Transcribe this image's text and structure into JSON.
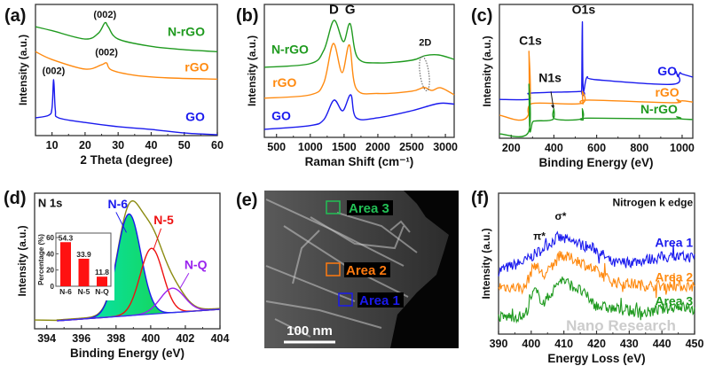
{
  "figure": {
    "watermark": "Nano Research"
  },
  "chart_data": [
    {
      "panel": "(a)",
      "type": "line",
      "xlabel": "2 Theta (degree)",
      "ylabel": "Intensity (a.u.)",
      "xlim": [
        5,
        60
      ],
      "ylim": [
        0,
        100
      ],
      "xticks": [
        10,
        20,
        30,
        40,
        50,
        60
      ],
      "grid": false,
      "series": [
        {
          "name": "N-rGO",
          "color": "#1f9a1f",
          "x": [
            5,
            10,
            20,
            24,
            26,
            27,
            30,
            40,
            50,
            60
          ],
          "y": [
            83,
            80,
            73.6,
            78,
            86,
            83,
            73.6,
            68,
            65.5,
            64
          ]
        },
        {
          "name": "rGO",
          "color": "#ff8a10",
          "x": [
            5,
            10,
            20,
            25,
            26.5,
            28,
            35,
            45,
            60
          ],
          "y": [
            64,
            58,
            50.7,
            54,
            55.4,
            50,
            46,
            44,
            43
          ]
        },
        {
          "name": "GO",
          "color": "#1a1aee",
          "x": [
            5,
            9,
            10,
            10.5,
            11,
            12,
            20,
            30,
            40,
            50,
            60
          ],
          "y": [
            13.5,
            15.5,
            21,
            42.6,
            19.6,
            13.5,
            10,
            6.8,
            4.7,
            2,
            0.7
          ]
        }
      ],
      "annotations": [
        {
          "text": "(002)"
        },
        {
          "text": "(002)"
        },
        {
          "text": "(002)"
        }
      ]
    },
    {
      "panel": "(b)",
      "type": "line",
      "xlabel": "Raman Shift (cm⁻¹)",
      "ylabel": "Intensity (a.u.)",
      "xlim": [
        320,
        3130
      ],
      "ylim": [
        0,
        100
      ],
      "xticks": [
        500,
        1000,
        1500,
        2000,
        2500,
        3000
      ],
      "grid": false,
      "series": [
        {
          "name": "N-rGO",
          "color": "#1f9a1f",
          "x": [
            320,
            1000,
            1200,
            1350,
            1490,
            1590,
            1700,
            2000,
            2500,
            2700,
            2900,
            3130
          ],
          "y": [
            52.7,
            55.5,
            65.5,
            88,
            72,
            85.5,
            60,
            56,
            58,
            61.5,
            62,
            58.7
          ]
        },
        {
          "name": "rGO",
          "color": "#ff8a10",
          "x": [
            320,
            1000,
            1200,
            1340,
            1470,
            1580,
            1680,
            2000,
            2500,
            2680,
            2800,
            2930,
            3130
          ],
          "y": [
            29.5,
            32,
            41,
            70.6,
            48.7,
            69.5,
            36.7,
            33,
            34.7,
            37.5,
            35.3,
            37.3,
            32
          ]
        },
        {
          "name": "GO",
          "color": "#1a1aee",
          "x": [
            320,
            1000,
            1200,
            1350,
            1480,
            1600,
            1680,
            2000,
            2500,
            2900,
            3130
          ],
          "y": [
            6,
            8.9,
            13.3,
            28,
            20,
            32,
            14.7,
            14.7,
            20,
            25.5,
            25
          ]
        }
      ],
      "annotations": [
        {
          "text": "D"
        },
        {
          "text": "G"
        },
        {
          "text": "2D"
        }
      ]
    },
    {
      "panel": "(c)",
      "type": "line",
      "xlabel": "Binding Energy (eV)",
      "ylabel": "Intensity (a.u.)",
      "xlim": [
        145,
        1050
      ],
      "ylim": [
        0,
        100
      ],
      "xticks": [
        200,
        400,
        600,
        800,
        1000
      ],
      "grid": false,
      "series": [
        {
          "name": "GO",
          "color": "#1a1aee",
          "x": [
            145,
            280,
            284,
            300,
            525,
            530,
            533,
            537,
            555,
            600,
            960,
            970,
            980,
            990,
            1000,
            1050
          ],
          "y": [
            29,
            29,
            32.5,
            33.8,
            35,
            36,
            87,
            37,
            45.7,
            43.7,
            40.4,
            50,
            46,
            49,
            48,
            45.7
          ]
        },
        {
          "name": "rGO",
          "color": "#ff8a10",
          "x": [
            145,
            279,
            283,
            287,
            300,
            528,
            533,
            537,
            560,
            960,
            975,
            985,
            1000,
            1050
          ],
          "y": [
            17.2,
            17,
            65,
            19,
            26,
            26,
            35,
            26,
            28.5,
            26.5,
            29,
            27,
            28,
            27
          ]
        },
        {
          "name": "N-rGO",
          "color": "#1f9a1f",
          "x": [
            145,
            279,
            283,
            287,
            300,
            320,
            395,
            400,
            405,
            528,
            533,
            537,
            560,
            960,
            975,
            990,
            1050
          ],
          "y": [
            3.3,
            4,
            40.4,
            6,
            12,
            13,
            14,
            22,
            14.5,
            14.5,
            22,
            14,
            15,
            14.5,
            16,
            14.5,
            14
          ]
        }
      ],
      "annotations": [
        {
          "text": "O1s"
        },
        {
          "text": "C1s"
        },
        {
          "text": "N1s"
        }
      ]
    },
    {
      "panel": "(d)",
      "type": "line",
      "title": "N 1s",
      "xlabel": "Binding Energy (eV)",
      "ylabel": "Intensity (a.u.)",
      "xlim": [
        393.3,
        404
      ],
      "ylim": [
        0,
        100
      ],
      "xticks": [
        394,
        396,
        398,
        400,
        402,
        404
      ],
      "grid": false,
      "baseline": {
        "x": [
          394.6,
          404
        ],
        "y": [
          5.9,
          14.4
        ],
        "color": "#3333ee"
      },
      "envelope_color": "#8b8b10",
      "series": [
        {
          "name": "N-6",
          "color": "#1a1aee",
          "center": 398.75,
          "amplitude": 75,
          "fwhm": 1.6
        },
        {
          "name": "N-5",
          "color": "#ee1111",
          "center": 400.05,
          "amplitude": 48.5,
          "fwhm": 1.55
        },
        {
          "name": "N-Q",
          "color": "#9a22ee",
          "center": 401.25,
          "amplitude": 18,
          "fwhm": 1.65
        }
      ],
      "inset": {
        "type": "bar",
        "ylabel": "Percentage (%)",
        "ylim": [
          0,
          65.5
        ],
        "yticks": [
          0,
          20,
          40,
          60
        ],
        "categories": [
          "N-6",
          "N-5",
          "N-Q"
        ],
        "values": [
          54.3,
          33.9,
          11.8
        ],
        "labels": [
          "54.3",
          "33.9",
          "11.8"
        ],
        "color": "#ff1111"
      }
    },
    {
      "panel": "(f)",
      "type": "line",
      "title": "Nitrogen k edge",
      "xlabel": "Energy Loss (eV)",
      "ylabel": "Intensity (a.u.)",
      "xlim": [
        390,
        450
      ],
      "ylim": [
        0,
        100
      ],
      "xticks": [
        390,
        400,
        410,
        420,
        430,
        440,
        450
      ],
      "grid": false,
      "series": [
        {
          "name": "Area 1",
          "color": "#1a1aee",
          "x": [
            390,
            398,
            402,
            408,
            412,
            420,
            425,
            432,
            440,
            450
          ],
          "y": [
            45,
            51.6,
            58,
            68.5,
            66,
            60,
            50,
            51.6,
            54.7,
            54.7
          ]
        },
        {
          "name": "Area 2",
          "color": "#ff8a10",
          "x": [
            390,
            398,
            401,
            404,
            409,
            415,
            425,
            435,
            450
          ],
          "y": [
            34,
            32.7,
            50,
            41,
            56,
            51.6,
            37,
            34.6,
            34
          ]
        },
        {
          "name": "Area 3",
          "color": "#1f9a1f",
          "x": [
            390,
            398,
            401,
            404,
            409,
            415,
            420,
            425,
            435,
            445,
            450
          ],
          "y": [
            12,
            12.6,
            31,
            22,
            39,
            31,
            20,
            18,
            15,
            20,
            17
          ]
        }
      ],
      "annotations": [
        {
          "text": "σ*"
        },
        {
          "text": "π*"
        }
      ]
    }
  ],
  "micrograph": {
    "panel": "(e)",
    "scale_bar": "100 nm",
    "areas": [
      {
        "label": "Area 3",
        "color": "#22c055"
      },
      {
        "label": "Area 2",
        "color": "#ff7a10"
      },
      {
        "label": "Area 1",
        "color": "#1a1aee"
      }
    ]
  }
}
